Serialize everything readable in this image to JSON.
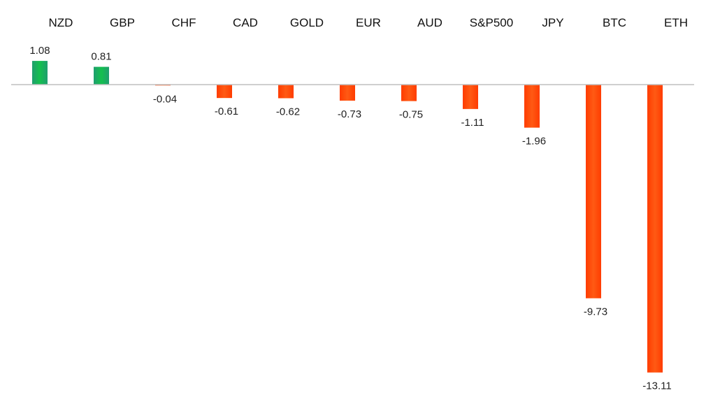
{
  "chart_data": {
    "type": "bar",
    "title": "",
    "xlabel": "",
    "ylabel": "",
    "categories": [
      "NZD",
      "GBP",
      "CHF",
      "CAD",
      "GOLD",
      "EUR",
      "AUD",
      "S&P500",
      "JPY",
      "BTC",
      "ETH"
    ],
    "values": [
      1.08,
      0.81,
      -0.04,
      -0.61,
      -0.62,
      -0.73,
      -0.75,
      -1.11,
      -1.96,
      -9.73,
      -13.11
    ],
    "value_labels": [
      "1.08",
      "0.81",
      "-0.04",
      "-0.61",
      "-0.62",
      "-0.73",
      "-0.75",
      "-1.11",
      "-1.96",
      "-9.73",
      "-13.11"
    ],
    "ylim": [
      -13.11,
      1.08
    ],
    "grid": false,
    "category_labels_position": "top",
    "positive_color": "#1aa85a",
    "negative_color": "#ff3a00",
    "axis_color": "#bfbfbf"
  }
}
